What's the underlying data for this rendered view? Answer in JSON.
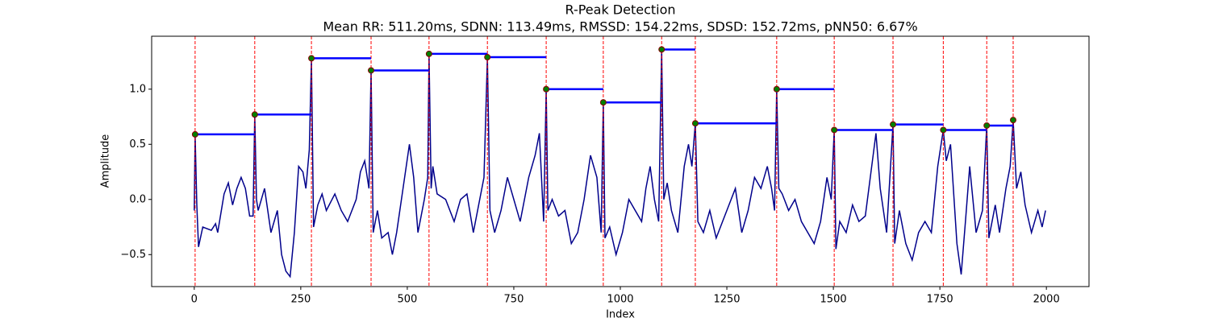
{
  "chart_data": {
    "type": "line",
    "title": "R-Peak Detection",
    "subtitle": "Mean RR: 511.20ms, SDNN: 113.49ms, RMSSD: 154.22ms, SDSD: 152.72ms, pNN50: 6.67%",
    "xlabel": "Index",
    "ylabel": "Amplitude",
    "xlim": [
      -100,
      2100
    ],
    "ylim": [
      -0.79,
      1.48
    ],
    "xticks": [
      0,
      250,
      500,
      750,
      1000,
      1250,
      1500,
      1750,
      2000
    ],
    "yticks": [
      {
        "value": -0.5,
        "label": "−0.5"
      },
      {
        "value": 0,
        "label": "0.0"
      },
      0.5,
      {
        "value": 1,
        "label": "1.0"
      }
    ],
    "x": [
      0,
      2,
      6,
      10,
      20,
      40,
      50,
      55,
      70,
      80,
      90,
      100,
      110,
      120,
      130,
      138,
      142,
      146,
      150,
      165,
      180,
      195,
      205,
      215,
      225,
      235,
      245,
      255,
      262,
      270,
      275,
      280,
      290,
      300,
      310,
      330,
      345,
      360,
      370,
      380,
      390,
      400,
      410,
      415,
      420,
      430,
      440,
      455,
      465,
      475,
      490,
      505,
      515,
      525,
      540,
      548,
      551,
      556,
      560,
      570,
      590,
      610,
      625,
      640,
      655,
      670,
      680,
      688,
      694,
      705,
      720,
      735,
      750,
      765,
      785,
      800,
      810,
      820,
      826,
      830,
      840,
      855,
      870,
      885,
      900,
      915,
      930,
      945,
      955,
      960,
      964,
      975,
      990,
      1005,
      1020,
      1035,
      1050,
      1060,
      1070,
      1080,
      1090,
      1097,
      1102,
      1110,
      1120,
      1135,
      1150,
      1160,
      1168,
      1176,
      1182,
      1195,
      1210,
      1225,
      1240,
      1255,
      1270,
      1285,
      1300,
      1315,
      1330,
      1345,
      1355,
      1362,
      1367,
      1372,
      1380,
      1395,
      1410,
      1425,
      1440,
      1455,
      1470,
      1485,
      1495,
      1502,
      1506,
      1515,
      1530,
      1545,
      1560,
      1575,
      1590,
      1600,
      1610,
      1625,
      1640,
      1644,
      1655,
      1670,
      1685,
      1700,
      1715,
      1730,
      1745,
      1758,
      1765,
      1775,
      1790,
      1800,
      1810,
      1820,
      1835,
      1850,
      1860,
      1865,
      1880,
      1890,
      1905,
      1915,
      1922,
      1930,
      1940,
      1950,
      1965,
      1980,
      1990,
      1998
    ],
    "series": [
      {
        "color": "#00008b",
        "values": [
          -0.1,
          0.59,
          -0.05,
          -0.43,
          -0.25,
          -0.28,
          -0.22,
          -0.3,
          0.05,
          0.15,
          -0.05,
          0.1,
          0.2,
          0.1,
          -0.15,
          -0.15,
          0.77,
          0.0,
          -0.1,
          0.1,
          -0.3,
          -0.1,
          -0.5,
          -0.65,
          -0.7,
          -0.3,
          0.3,
          0.25,
          0.1,
          0.45,
          1.28,
          -0.25,
          -0.05,
          0.05,
          -0.1,
          0.05,
          -0.1,
          -0.2,
          -0.1,
          0.0,
          0.25,
          0.35,
          0.1,
          1.17,
          -0.3,
          -0.1,
          -0.35,
          -0.3,
          -0.5,
          -0.3,
          0.1,
          0.5,
          0.2,
          -0.3,
          0.0,
          0.2,
          1.32,
          0.1,
          0.3,
          0.05,
          0.0,
          -0.2,
          0.0,
          0.05,
          -0.3,
          0.0,
          0.2,
          1.29,
          -0.1,
          -0.3,
          -0.1,
          0.2,
          0.0,
          -0.2,
          0.2,
          0.4,
          0.6,
          -0.2,
          1.0,
          -0.1,
          0.0,
          -0.15,
          -0.1,
          -0.4,
          -0.3,
          0.0,
          0.4,
          0.2,
          -0.3,
          0.88,
          -0.35,
          -0.25,
          -0.5,
          -0.3,
          0.0,
          -0.1,
          -0.2,
          0.1,
          0.3,
          0.0,
          -0.2,
          1.36,
          0.0,
          0.15,
          -0.1,
          -0.3,
          0.3,
          0.5,
          0.3,
          0.69,
          -0.2,
          -0.3,
          -0.1,
          -0.35,
          -0.2,
          -0.05,
          0.1,
          -0.3,
          -0.1,
          0.2,
          0.1,
          0.3,
          0.1,
          -0.1,
          1.0,
          0.1,
          0.05,
          -0.1,
          0.0,
          -0.2,
          -0.3,
          -0.4,
          -0.2,
          0.2,
          0.0,
          0.63,
          -0.45,
          -0.2,
          -0.3,
          -0.05,
          -0.2,
          -0.15,
          0.3,
          0.6,
          0.1,
          -0.3,
          0.68,
          -0.4,
          -0.1,
          -0.4,
          -0.55,
          -0.3,
          -0.2,
          -0.3,
          0.3,
          0.63,
          0.35,
          0.5,
          -0.4,
          -0.68,
          -0.2,
          0.3,
          -0.3,
          -0.1,
          0.67,
          -0.35,
          -0.05,
          -0.3,
          0.1,
          0.3,
          0.72,
          0.1,
          0.25,
          -0.05,
          -0.3,
          -0.1,
          -0.25,
          -0.1
        ]
      }
    ],
    "peaks": {
      "x": [
        2,
        142,
        275,
        415,
        551,
        688,
        826,
        960,
        1097,
        1176,
        1367,
        1502,
        1640,
        1758,
        1860,
        1922
      ],
      "values": [
        0.59,
        0.77,
        1.28,
        1.17,
        1.32,
        1.29,
        1.0,
        0.88,
        1.36,
        0.69,
        1.0,
        0.63,
        0.68,
        0.63,
        0.67,
        0.72
      ],
      "color": "#008000",
      "edge_color": "#8b0000"
    },
    "peak_marker_color": "#ff0000",
    "rr_line_color": "#0000ff"
  }
}
